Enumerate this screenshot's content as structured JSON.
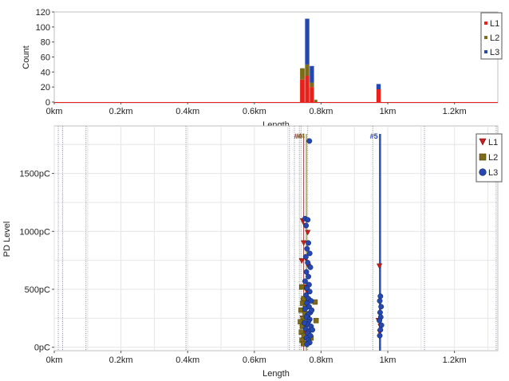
{
  "colors": {
    "L1": "#e8221b",
    "L2": "#7d6b17",
    "L3": "#2547b0"
  },
  "chart_data": [
    {
      "type": "bar",
      "stacked": true,
      "xlabel": "Length",
      "ylabel": "Count",
      "xlim": [
        0,
        1.33
      ],
      "ylim": [
        0,
        120
      ],
      "x_ticks": [
        {
          "v": 0,
          "label": "0km"
        },
        {
          "v": 0.2,
          "label": "0.2km"
        },
        {
          "v": 0.4,
          "label": "0.4km"
        },
        {
          "v": 0.6,
          "label": "0.6km"
        },
        {
          "v": 0.8,
          "label": "0.8km"
        },
        {
          "v": 1.0,
          "label": "1km"
        },
        {
          "v": 1.2,
          "label": "1.2km"
        }
      ],
      "y_ticks": [
        0,
        20,
        40,
        60,
        80,
        100,
        120
      ],
      "grid": false,
      "legend": "top-right",
      "bins": [
        {
          "x0": 0.737,
          "x1": 0.752,
          "L1": 30,
          "L2": 15,
          "L3": 0
        },
        {
          "x0": 0.752,
          "x1": 0.766,
          "L1": 35,
          "L2": 15,
          "L3": 61
        },
        {
          "x0": 0.766,
          "x1": 0.78,
          "L1": 20,
          "L2": 6,
          "L3": 22
        },
        {
          "x0": 0.78,
          "x1": 0.79,
          "L1": 0,
          "L2": 3,
          "L3": 0
        },
        {
          "x0": 0.966,
          "x1": 0.98,
          "L1": 17,
          "L2": 0,
          "L3": 7
        }
      ],
      "legend_entries": [
        "L1",
        "L2",
        "L3"
      ]
    },
    {
      "type": "scatter",
      "xlabel": "Length",
      "ylabel": "PD Level",
      "xlim": [
        0,
        1.33
      ],
      "ylim": [
        -30,
        1910
      ],
      "x_ticks": [
        {
          "v": 0,
          "label": "0km"
        },
        {
          "v": 0.2,
          "label": "0.2km"
        },
        {
          "v": 0.4,
          "label": "0.4km"
        },
        {
          "v": 0.6,
          "label": "0.6km"
        },
        {
          "v": 0.8,
          "label": "0.8km"
        },
        {
          "v": 1.0,
          "label": "1km"
        },
        {
          "v": 1.2,
          "label": "1.2km"
        }
      ],
      "y_ticks": [
        {
          "v": 0,
          "label": "0pC"
        },
        {
          "v": 500,
          "label": "500pC"
        },
        {
          "v": 1000,
          "label": "1000pC"
        },
        {
          "v": 1500,
          "label": "1500pC"
        }
      ],
      "grid": true,
      "legend": "top-right",
      "legend_entries": [
        "L1",
        "L2",
        "L3"
      ],
      "markers": [
        {
          "label": "#4",
          "x": 0.748,
          "color": "#8b3a3a"
        },
        {
          "label": "#4",
          "x": 0.756,
          "color": "#7d6b17"
        },
        {
          "label": "#5",
          "x": 0.975,
          "color": "#2547b0"
        }
      ],
      "series": [
        {
          "name": "L1",
          "shape": "triangle",
          "points": [
            [
              0.745,
              1090
            ],
            [
              0.752,
              1050
            ],
            [
              0.76,
              990
            ],
            [
              0.748,
              900
            ],
            [
              0.755,
              760
            ],
            [
              0.742,
              745
            ],
            [
              0.762,
              700
            ],
            [
              0.75,
              520
            ],
            [
              0.758,
              480
            ],
            [
              0.746,
              400
            ],
            [
              0.752,
              330
            ],
            [
              0.76,
              280
            ],
            [
              0.744,
              250
            ],
            [
              0.756,
              180
            ],
            [
              0.75,
              120
            ],
            [
              0.748,
              60
            ],
            [
              0.975,
              700
            ],
            [
              0.972,
              230
            ],
            [
              0.978,
              180
            ],
            [
              0.976,
              130
            ]
          ]
        },
        {
          "name": "L2",
          "shape": "square",
          "points": [
            [
              0.742,
              520
            ],
            [
              0.748,
              420
            ],
            [
              0.745,
              380
            ],
            [
              0.74,
              320
            ],
            [
              0.752,
              290
            ],
            [
              0.746,
              250
            ],
            [
              0.738,
              220
            ],
            [
              0.744,
              180
            ],
            [
              0.741,
              130
            ],
            [
              0.749,
              100
            ],
            [
              0.743,
              60
            ],
            [
              0.747,
              30
            ],
            [
              0.755,
              350
            ],
            [
              0.76,
              260
            ],
            [
              0.782,
              390
            ],
            [
              0.785,
              230
            ],
            [
              0.77,
              80
            ]
          ]
        },
        {
          "name": "L3",
          "shape": "circle",
          "points": [
            [
              0.765,
              1780
            ],
            [
              0.752,
              1110
            ],
            [
              0.76,
              1100
            ],
            [
              0.755,
              1050
            ],
            [
              0.762,
              900
            ],
            [
              0.758,
              850
            ],
            [
              0.766,
              810
            ],
            [
              0.754,
              780
            ],
            [
              0.76,
              730
            ],
            [
              0.768,
              690
            ],
            [
              0.756,
              650
            ],
            [
              0.762,
              610
            ],
            [
              0.752,
              570
            ],
            [
              0.764,
              540
            ],
            [
              0.758,
              510
            ],
            [
              0.766,
              480
            ],
            [
              0.755,
              450
            ],
            [
              0.762,
              420
            ],
            [
              0.77,
              400
            ],
            [
              0.758,
              380
            ],
            [
              0.764,
              350
            ],
            [
              0.752,
              330
            ],
            [
              0.768,
              300
            ],
            [
              0.76,
              280
            ],
            [
              0.756,
              260
            ],
            [
              0.766,
              240
            ],
            [
              0.762,
              220
            ],
            [
              0.758,
              200
            ],
            [
              0.77,
              180
            ],
            [
              0.754,
              160
            ],
            [
              0.764,
              140
            ],
            [
              0.76,
              120
            ],
            [
              0.768,
              100
            ],
            [
              0.756,
              80
            ],
            [
              0.762,
              60
            ],
            [
              0.766,
              40
            ],
            [
              0.758,
              25
            ],
            [
              0.772,
              320
            ],
            [
              0.774,
              150
            ],
            [
              0.75,
              210
            ],
            [
              0.978,
              440
            ],
            [
              0.976,
              400
            ],
            [
              0.98,
              350
            ],
            [
              0.977,
              300
            ],
            [
              0.979,
              260
            ],
            [
              0.975,
              230
            ],
            [
              0.981,
              190
            ],
            [
              0.978,
              150
            ],
            [
              0.976,
              100
            ]
          ]
        }
      ]
    }
  ]
}
